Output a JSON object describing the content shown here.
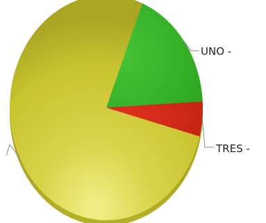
{
  "chart_data": {
    "type": "pie",
    "title": "",
    "slices": [
      {
        "label": "UNO -",
        "value": 18,
        "color": "#3cb32c"
      },
      {
        "label": "TRES -",
        "value": 5,
        "color": "#d42a1a"
      },
      {
        "label": "",
        "value": 77,
        "color": "#c8c42e"
      }
    ],
    "start_angle_deg": -68,
    "colors": {
      "yellow_highlight": "#f4f08a",
      "yellow_shadow": "#9e9a1c",
      "leader_line": "#8a8a8a"
    }
  }
}
